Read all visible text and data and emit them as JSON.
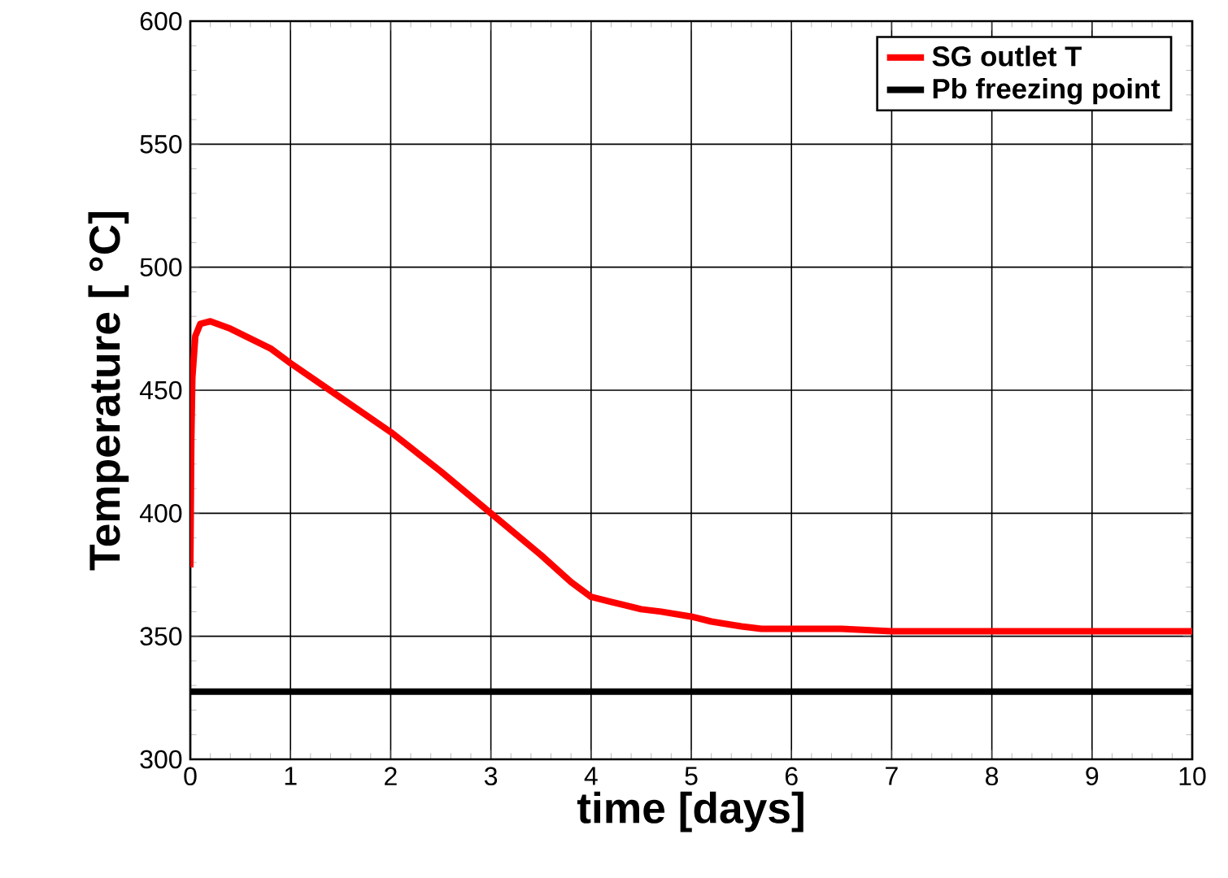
{
  "chart_data": {
    "type": "line",
    "xlabel": "time [days]",
    "ylabel": "Temperature [ °C]",
    "xlim": [
      0,
      10
    ],
    "ylim": [
      300,
      600
    ],
    "xticks": [
      0,
      1,
      2,
      3,
      4,
      5,
      6,
      7,
      8,
      9,
      10
    ],
    "yticks": [
      300,
      350,
      400,
      450,
      500,
      550,
      600
    ],
    "grid": true,
    "legend": "top right",
    "line_style": "solid",
    "marker": "none",
    "series": [
      {
        "name": "SG outlet T",
        "color": "#ff0000",
        "x": [
          0,
          0.01,
          0.02,
          0.05,
          0.1,
          0.2,
          0.4,
          0.8,
          1.0,
          1.5,
          2.0,
          2.5,
          3.0,
          3.5,
          3.8,
          4.0,
          4.2,
          4.5,
          4.7,
          5.0,
          5.2,
          5.5,
          5.7,
          6.0,
          6.5,
          7.0,
          8.0,
          9.0,
          10.0
        ],
        "values": [
          378,
          430,
          455,
          472,
          477,
          478,
          475,
          467,
          461,
          447,
          433,
          417,
          400,
          383,
          372,
          366,
          364,
          361,
          360,
          358,
          356,
          354,
          353,
          353,
          353,
          352,
          352,
          352,
          352
        ]
      },
      {
        "name": "Pb freezing point",
        "color": "#000000",
        "x": [
          0,
          10
        ],
        "values": [
          327.5,
          327.5
        ]
      }
    ]
  }
}
